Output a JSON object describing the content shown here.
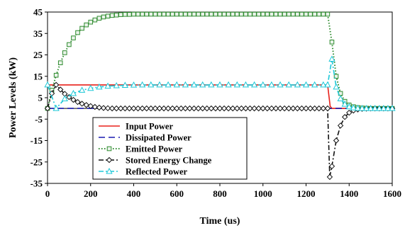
{
  "chart_data": {
    "type": "line",
    "xlabel": "Time (us)",
    "ylabel": "Power Levels (kW)",
    "xlim": [
      0,
      1600
    ],
    "ylim": [
      -35,
      45
    ],
    "xticks": [
      0,
      200,
      400,
      600,
      800,
      1000,
      1200,
      1400,
      1600
    ],
    "yticks": [
      45,
      35,
      25,
      15,
      5,
      -5,
      -15,
      -25,
      -35
    ],
    "grid": false,
    "legend_position": "lower-left",
    "series": [
      {
        "name": "Input Power",
        "color": "#e8201a",
        "dash": "solid",
        "marker": "none",
        "x": [
          0,
          1300,
          1312,
          1320,
          1600
        ],
        "y": [
          11,
          11,
          1,
          0,
          0
        ]
      },
      {
        "name": "Dissipated Power",
        "color": "#1a1ab0",
        "dash": "long-dash",
        "marker": "none",
        "x": [
          0,
          1600
        ],
        "y": [
          0,
          0
        ]
      },
      {
        "name": "Emitted Power",
        "color": "#2e8b2e",
        "dash": "dotted",
        "marker": "square",
        "x": [
          0,
          20,
          40,
          60,
          80,
          100,
          120,
          140,
          160,
          180,
          200,
          220,
          240,
          260,
          280,
          300,
          320,
          340,
          360,
          380,
          400,
          420,
          440,
          460,
          480,
          500,
          520,
          540,
          560,
          580,
          600,
          620,
          640,
          660,
          680,
          700,
          720,
          740,
          760,
          780,
          800,
          820,
          840,
          860,
          880,
          900,
          920,
          940,
          960,
          980,
          1000,
          1020,
          1040,
          1060,
          1080,
          1100,
          1120,
          1140,
          1160,
          1180,
          1200,
          1220,
          1240,
          1260,
          1280,
          1300,
          1320,
          1340,
          1360,
          1380,
          1400,
          1420,
          1440,
          1460,
          1480,
          1500,
          1520,
          1540,
          1560,
          1580,
          1600
        ],
        "y": [
          0,
          8.5,
          15.5,
          21.3,
          26,
          29.8,
          32.9,
          35.4,
          37.4,
          39,
          40.3,
          41.3,
          42.1,
          42.7,
          43.1,
          43.4,
          43.6,
          43.8,
          43.9,
          43.9,
          44,
          44,
          44,
          44,
          44,
          44,
          44,
          44,
          44,
          44,
          44,
          44,
          44,
          44,
          44,
          44,
          44,
          44,
          44,
          44,
          44,
          44,
          44,
          44,
          44,
          44,
          44,
          44,
          44,
          44,
          44,
          44,
          44,
          44,
          44,
          44,
          44,
          44,
          44,
          44,
          44,
          44,
          44,
          44,
          44,
          44,
          31,
          15,
          7,
          3.3,
          1.6,
          0.8,
          0.4,
          0.2,
          0.1,
          0,
          0,
          0,
          0,
          0,
          0
        ]
      },
      {
        "name": "Stored Energy Change",
        "color": "#111111",
        "dash": "dash-dot",
        "marker": "diamond",
        "x": [
          0,
          20,
          40,
          60,
          80,
          100,
          120,
          140,
          160,
          180,
          200,
          220,
          240,
          260,
          280,
          300,
          320,
          340,
          360,
          380,
          400,
          420,
          440,
          460,
          480,
          500,
          520,
          540,
          560,
          580,
          600,
          620,
          640,
          660,
          680,
          700,
          720,
          740,
          760,
          780,
          800,
          820,
          840,
          860,
          880,
          900,
          920,
          940,
          960,
          980,
          1000,
          1020,
          1040,
          1060,
          1080,
          1100,
          1120,
          1140,
          1160,
          1180,
          1200,
          1220,
          1240,
          1260,
          1280,
          1300,
          1310,
          1320,
          1340,
          1360,
          1380,
          1400,
          1420,
          1440,
          1460,
          1480,
          1500,
          1520,
          1540,
          1560,
          1580,
          1600
        ],
        "y": [
          0,
          7,
          11,
          8.8,
          6.8,
          5.3,
          4,
          3,
          2.2,
          1.6,
          1.1,
          0.7,
          0.4,
          0.2,
          0.1,
          0,
          0,
          0,
          0,
          0,
          0,
          0,
          0,
          0,
          0,
          0,
          0,
          0,
          0,
          0,
          0,
          0,
          0,
          0,
          0,
          0,
          0,
          0,
          0,
          0,
          0,
          0,
          0,
          0,
          0,
          0,
          0,
          0,
          0,
          0,
          0,
          0,
          0,
          0,
          0,
          0,
          0,
          0,
          0,
          0,
          0,
          0,
          0,
          0,
          0,
          0,
          -32,
          -27,
          -15,
          -8,
          -4,
          -2,
          -1,
          -0.5,
          -0.2,
          -0.1,
          0,
          0,
          0,
          0,
          0,
          0
        ]
      },
      {
        "name": "Reflected Power",
        "color": "#1ec8d8",
        "dash": "dash-dot",
        "marker": "triangle",
        "x": [
          0,
          40,
          80,
          120,
          160,
          200,
          240,
          280,
          320,
          360,
          400,
          440,
          480,
          520,
          560,
          600,
          640,
          680,
          720,
          760,
          800,
          840,
          880,
          920,
          960,
          1000,
          1040,
          1080,
          1120,
          1160,
          1200,
          1240,
          1280,
          1300,
          1320,
          1340,
          1360,
          1380,
          1400,
          1420,
          1440,
          1460,
          1480,
          1500,
          1520,
          1540,
          1560,
          1580,
          1600
        ],
        "y": [
          11,
          0,
          4.5,
          7,
          8.5,
          9.4,
          10,
          10.4,
          10.6,
          10.8,
          10.9,
          11,
          11,
          11,
          11,
          11,
          11,
          11,
          11,
          11,
          11,
          11,
          11,
          11,
          11,
          11,
          11,
          11,
          11,
          11,
          11,
          11,
          11,
          11,
          23,
          10,
          4.5,
          2,
          0.8,
          0.3,
          0.1,
          0,
          0,
          0,
          0,
          0,
          0,
          0,
          0
        ]
      }
    ]
  }
}
